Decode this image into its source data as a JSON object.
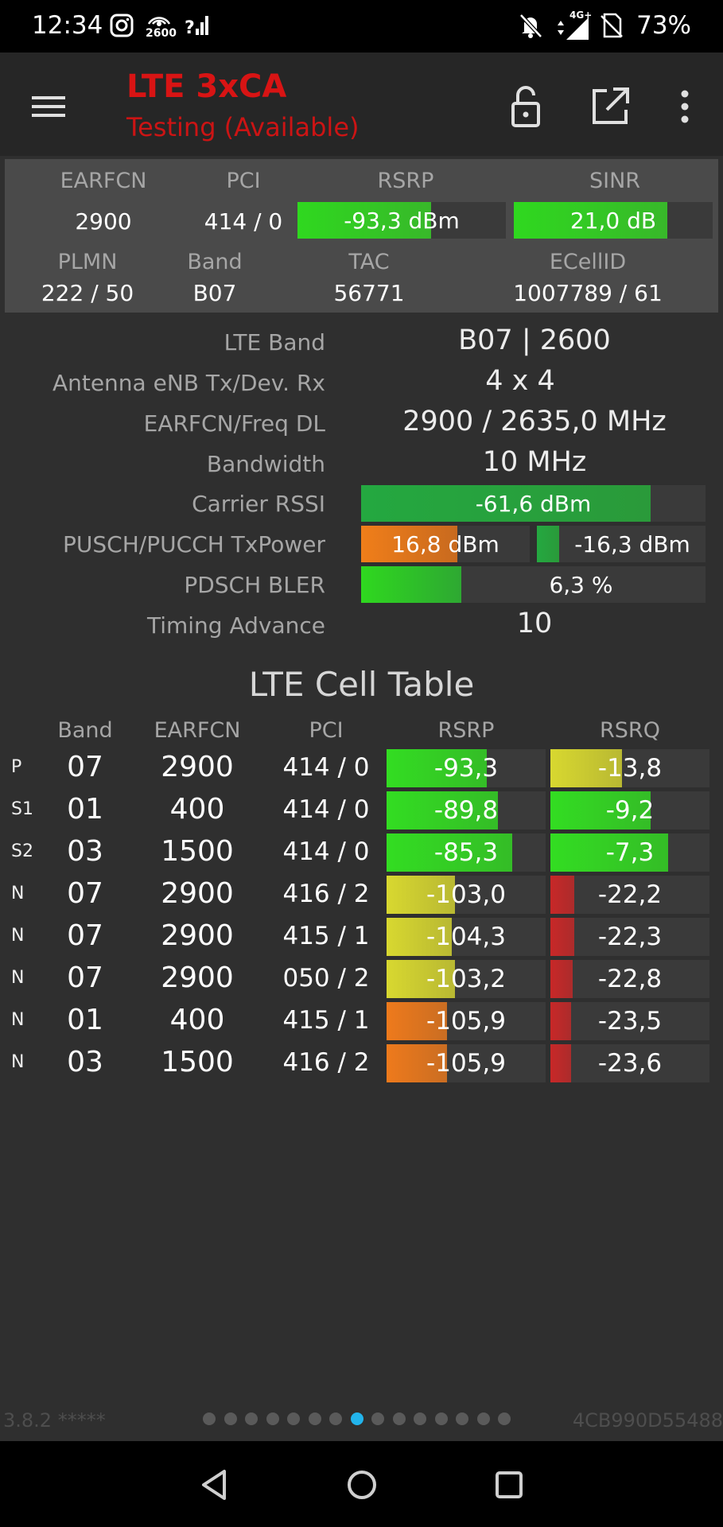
{
  "status_bar": {
    "time": "12:34",
    "battery": "73%",
    "icons": [
      "instagram-icon",
      "hotspot-2600-icon",
      "signal-unknown-icon",
      "bell-off-icon",
      "4g-signal-icon",
      "no-sim-icon"
    ],
    "hotspot_label": "2600",
    "network_label": "4G+"
  },
  "app_bar": {
    "title": "LTE 3xCA",
    "subtitle": "Testing (Available)",
    "icons": [
      "menu-icon",
      "unlock-icon",
      "open-external-icon",
      "more-vert-icon"
    ]
  },
  "serving": {
    "headers": {
      "earfcn": "EARFCN",
      "pci": "PCI",
      "rsrp": "RSRP",
      "sinr": "SINR",
      "plmn": "PLMN",
      "band": "Band",
      "tac": "TAC",
      "ecellid": "ECellID"
    },
    "earfcn": "2900",
    "pci": "414 / 0",
    "rsrp": "-93,3 dBm",
    "rsrp_level": 0.64,
    "sinr": "21,0 dB",
    "sinr_level": 0.77,
    "plmn": "222 / 50",
    "band": "B07",
    "tac": "56771",
    "ecellid": "1007789 / 61"
  },
  "details": {
    "lte_band": {
      "label": "LTE Band",
      "value": "B07 | 2600"
    },
    "antenna": {
      "label": "Antenna eNB Tx/Dev. Rx",
      "value": "4 x 4"
    },
    "earfcn_freq": {
      "label": "EARFCN/Freq DL",
      "value": "2900 / 2635,0 MHz"
    },
    "bandwidth": {
      "label": "Bandwidth",
      "value": "10 MHz"
    },
    "rssi": {
      "label": "Carrier RSSI",
      "value": "-61,6 dBm",
      "level": 0.84
    },
    "txpower": {
      "label": "PUSCH/PUCCH TxPower",
      "pusch": "16,8 dBm",
      "pusch_level": 0.57,
      "pucch": "-16,3 dBm",
      "pucch_level": 0.13
    },
    "bler": {
      "label": "PDSCH BLER",
      "value": "6,3 %",
      "level": 0.29
    },
    "ta": {
      "label": "Timing Advance",
      "value": "10"
    }
  },
  "cell_table": {
    "title": "LTE Cell Table",
    "headers": {
      "band": "Band",
      "earfcn": "EARFCN",
      "pci": "PCI",
      "rsrp": "RSRP",
      "rsrq": "RSRQ"
    },
    "rows": [
      {
        "role": "P",
        "band": "07",
        "earfcn": "2900",
        "pci": "414 / 0",
        "rsrp": "-93,3",
        "rsrp_level": 0.63,
        "rsrp_color": "#33dd22",
        "rsrq": "-13,8",
        "rsrq_level": 0.45,
        "rsrq_color": "#d8d830"
      },
      {
        "role": "S1",
        "band": "01",
        "earfcn": "400",
        "pci": "414 / 0",
        "rsrp": "-89,8",
        "rsrp_level": 0.7,
        "rsrp_color": "#33dd22",
        "rsrq": "-9,2",
        "rsrq_level": 0.63,
        "rsrq_color": "#33dd22"
      },
      {
        "role": "S2",
        "band": "03",
        "earfcn": "1500",
        "pci": "414 / 0",
        "rsrp": "-85,3",
        "rsrp_level": 0.79,
        "rsrp_color": "#33dd22",
        "rsrq": "-7,3",
        "rsrq_level": 0.74,
        "rsrq_color": "#33dd22"
      },
      {
        "role": "N",
        "band": "07",
        "earfcn": "2900",
        "pci": "416 / 2",
        "rsrp": "-103,0",
        "rsrp_level": 0.43,
        "rsrp_color": "#d8d830",
        "rsrq": "-22,2",
        "rsrq_level": 0.15,
        "rsrq_color": "#c82828"
      },
      {
        "role": "N",
        "band": "07",
        "earfcn": "2900",
        "pci": "415 / 1",
        "rsrp": "-104,3",
        "rsrp_level": 0.41,
        "rsrp_color": "#d8d830",
        "rsrq": "-22,3",
        "rsrq_level": 0.15,
        "rsrq_color": "#c82828"
      },
      {
        "role": "N",
        "band": "07",
        "earfcn": "2900",
        "pci": "050 / 2",
        "rsrp": "-103,2",
        "rsrp_level": 0.43,
        "rsrp_color": "#d8d830",
        "rsrq": "-22,8",
        "rsrq_level": 0.14,
        "rsrq_color": "#c82828"
      },
      {
        "role": "N",
        "band": "01",
        "earfcn": "400",
        "pci": "415 / 1",
        "rsrp": "-105,9",
        "rsrp_level": 0.38,
        "rsrp_color": "#ee7a1c",
        "rsrq": "-23,5",
        "rsrq_level": 0.13,
        "rsrq_color": "#c82828"
      },
      {
        "role": "N",
        "band": "03",
        "earfcn": "1500",
        "pci": "416 / 2",
        "rsrp": "-105,9",
        "rsrp_level": 0.38,
        "rsrp_color": "#ee7a1c",
        "rsrq": "-23,6",
        "rsrq_level": 0.13,
        "rsrq_color": "#c82828"
      }
    ]
  },
  "footer": {
    "version": "3.8.2 *****",
    "device_id": "4CB990D55488",
    "page_count": 15,
    "active_page": 8
  },
  "nav_bar": {
    "icons": [
      "back-icon",
      "home-icon",
      "recents-icon"
    ]
  },
  "colors": {
    "title_red": "#d81414",
    "green": "#33dd22",
    "yellow": "#d8d830",
    "orange": "#ee7a1c",
    "red": "#c82828",
    "dark_green": "#2a9a3a",
    "active_dot": "#22b4ec"
  }
}
